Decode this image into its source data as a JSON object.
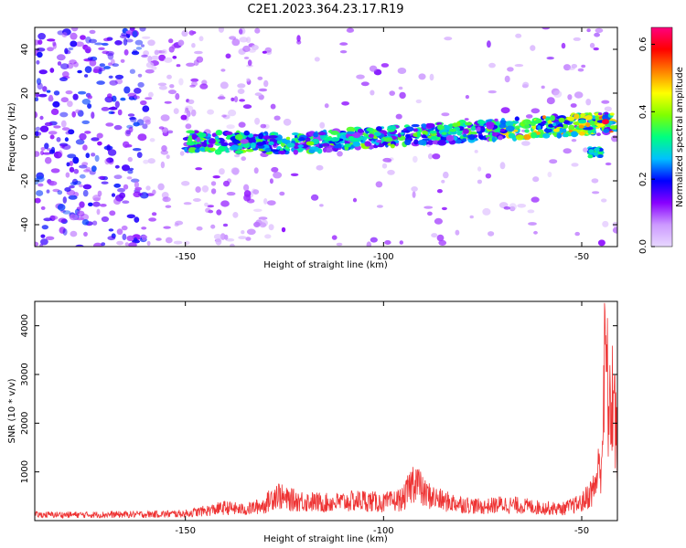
{
  "title": "C2E1.2023.364.23.17.R19",
  "colors": {
    "line": "#ee3333",
    "text": "#000000",
    "frame": "#000000"
  },
  "chart_data": [
    {
      "type": "heatmap",
      "xlabel": "Height of straight line (km)",
      "ylabel": "Frequency (Hz)",
      "xlim": [
        -188,
        -41
      ],
      "ylim": [
        -50,
        50
      ],
      "xticks": [
        -150,
        -100,
        -50
      ],
      "yticks": [
        -40,
        -20,
        0,
        20,
        40
      ],
      "colorbar": {
        "label": "Normalized spectral amplitude",
        "range": [
          0,
          0.65
        ],
        "ticks": [
          0.0,
          0.2,
          0.4,
          0.6
        ],
        "colormap": [
          "#e8d8ff",
          "#cc99ff",
          "#8800ff",
          "#0000ff",
          "#00c0ff",
          "#00ff80",
          "#80ff00",
          "#ffff00",
          "#ff8000",
          "#ff0000",
          "#ff0080"
        ]
      },
      "signal_band": [
        {
          "x": -150,
          "freq": -2
        },
        {
          "x": -125,
          "freq": -3
        },
        {
          "x": -100,
          "freq": 0
        },
        {
          "x": -75,
          "freq": 3
        },
        {
          "x": -55,
          "freq": 5
        },
        {
          "x": -43,
          "freq": 7
        }
      ],
      "secondary_feature": {
        "x_from": -48,
        "x_to": -45,
        "freq": -7
      },
      "peak_amplitude_location": {
        "x": -44,
        "freq": 7
      }
    },
    {
      "type": "line",
      "xlabel": "Height of straight line (km)",
      "ylabel": "SNR (10 * v/v)",
      "xlim": [
        -188,
        -41
      ],
      "ylim": [
        0,
        4500
      ],
      "xticks": [
        -150,
        -100,
        -50
      ],
      "yticks": [
        1000,
        2000,
        3000,
        4000
      ],
      "series": [
        {
          "x": [
            -188,
            -175,
            -160,
            -150,
            -145,
            -140,
            -135,
            -130,
            -127,
            -125,
            -120,
            -115,
            -110,
            -105,
            -100,
            -95,
            -92,
            -90,
            -85,
            -80,
            -75,
            -70,
            -65,
            -60,
            -55,
            -50,
            -47,
            -45,
            -44,
            -43,
            -42,
            -41
          ],
          "values": [
            150,
            150,
            160,
            180,
            250,
            330,
            280,
            400,
            700,
            550,
            500,
            450,
            480,
            520,
            450,
            550,
            1100,
            700,
            500,
            420,
            350,
            420,
            380,
            330,
            300,
            450,
            800,
            1600,
            4400,
            2500,
            3500,
            1500
          ]
        }
      ]
    }
  ]
}
